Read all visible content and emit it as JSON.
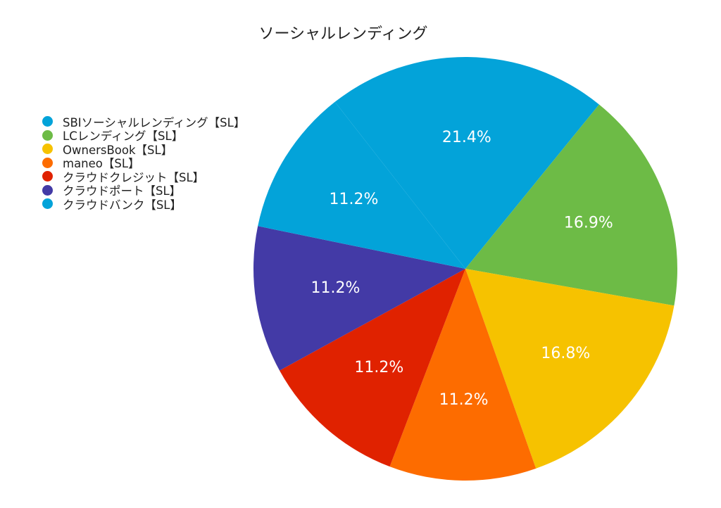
{
  "chart_data": {
    "type": "pie",
    "title": "ソーシャルレンディング",
    "legend_position": "left",
    "slices": [
      {
        "label": "SBIソーシャルレンディング【SL】",
        "value": 21.4,
        "value_label": "21.4%",
        "color": "#03A3D9"
      },
      {
        "label": "LCレンディング【SL】",
        "value": 16.9,
        "value_label": "16.9%",
        "color": "#6DBB46"
      },
      {
        "label": "OwnersBook【SL】",
        "value": 16.8,
        "value_label": "16.8%",
        "color": "#F6C200"
      },
      {
        "label": "maneo【SL】",
        "value": 11.2,
        "value_label": "11.2%",
        "color": "#FD6C00"
      },
      {
        "label": "クラウドクレジット【SL】",
        "value": 11.2,
        "value_label": "11.2%",
        "color": "#E02200"
      },
      {
        "label": "クラウドポート【SL】",
        "value": 11.2,
        "value_label": "11.2%",
        "color": "#433AA6"
      },
      {
        "label": "クラウドバンク【SL】",
        "value": 11.2,
        "value_label": "11.2%",
        "color": "#03A3D9"
      }
    ]
  }
}
